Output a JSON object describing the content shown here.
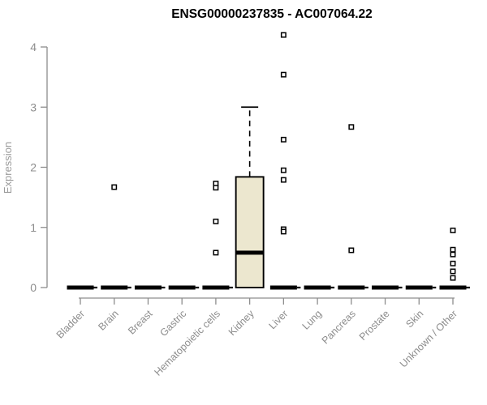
{
  "colors": {
    "background": "#ffffff",
    "title": "#000000",
    "axis": "#8d8d8d",
    "tick_label": "#8d8d8d",
    "ylabel": "#9b9b9b",
    "box_fill": "#ece7cf",
    "box_stroke": "#000000",
    "outlier_fill": "#ffffff",
    "outlier_stroke": "#000000"
  },
  "chart_data": {
    "type": "boxplot",
    "title": "ENSG00000237835 - AC007064.22",
    "xlabel": "",
    "ylabel": "Expression",
    "ylim": [
      0,
      4
    ],
    "yticks": [
      0,
      1,
      2,
      3,
      4
    ],
    "grid": false,
    "legend": false,
    "categories": [
      "Bladder",
      "Brain",
      "Breast",
      "Gastric",
      "Hematopoietic cells",
      "Kidney",
      "Liver",
      "Lung",
      "Pancreas",
      "Prostate",
      "Skin",
      "Unknown / Other"
    ],
    "series": [
      {
        "name": "Bladder",
        "q1": 0,
        "median": 0,
        "q3": 0,
        "whisker_low": 0,
        "whisker_high": 0,
        "outliers": []
      },
      {
        "name": "Brain",
        "q1": 0,
        "median": 0,
        "q3": 0,
        "whisker_low": 0,
        "whisker_high": 0,
        "outliers": [
          1.67
        ]
      },
      {
        "name": "Breast",
        "q1": 0,
        "median": 0,
        "q3": 0,
        "whisker_low": 0,
        "whisker_high": 0,
        "outliers": []
      },
      {
        "name": "Gastric",
        "q1": 0,
        "median": 0,
        "q3": 0,
        "whisker_low": 0,
        "whisker_high": 0,
        "outliers": []
      },
      {
        "name": "Hematopoietic cells",
        "q1": 0,
        "median": 0,
        "q3": 0,
        "whisker_low": 0,
        "whisker_high": 0,
        "outliers": [
          1.73,
          1.66,
          1.1,
          0.58
        ]
      },
      {
        "name": "Kidney",
        "q1": 0,
        "median": 0.58,
        "q3": 1.84,
        "whisker_low": 0,
        "whisker_high": 3.0,
        "outliers": []
      },
      {
        "name": "Liver",
        "q1": 0,
        "median": 0,
        "q3": 0,
        "whisker_low": 0,
        "whisker_high": 0,
        "outliers": [
          4.2,
          3.54,
          2.46,
          1.95,
          1.79,
          0.97,
          0.93
        ]
      },
      {
        "name": "Lung",
        "q1": 0,
        "median": 0,
        "q3": 0,
        "whisker_low": 0,
        "whisker_high": 0,
        "outliers": []
      },
      {
        "name": "Pancreas",
        "q1": 0,
        "median": 0,
        "q3": 0,
        "whisker_low": 0,
        "whisker_high": 0,
        "outliers": [
          2.67,
          0.62
        ]
      },
      {
        "name": "Prostate",
        "q1": 0,
        "median": 0,
        "q3": 0,
        "whisker_low": 0,
        "whisker_high": 0,
        "outliers": []
      },
      {
        "name": "Skin",
        "q1": 0,
        "median": 0,
        "q3": 0,
        "whisker_low": 0,
        "whisker_high": 0,
        "outliers": []
      },
      {
        "name": "Unknown / Other",
        "q1": 0,
        "median": 0,
        "q3": 0,
        "whisker_low": 0,
        "whisker_high": 0,
        "outliers": [
          0.95,
          0.63,
          0.55,
          0.4,
          0.27,
          0.16
        ]
      }
    ]
  }
}
